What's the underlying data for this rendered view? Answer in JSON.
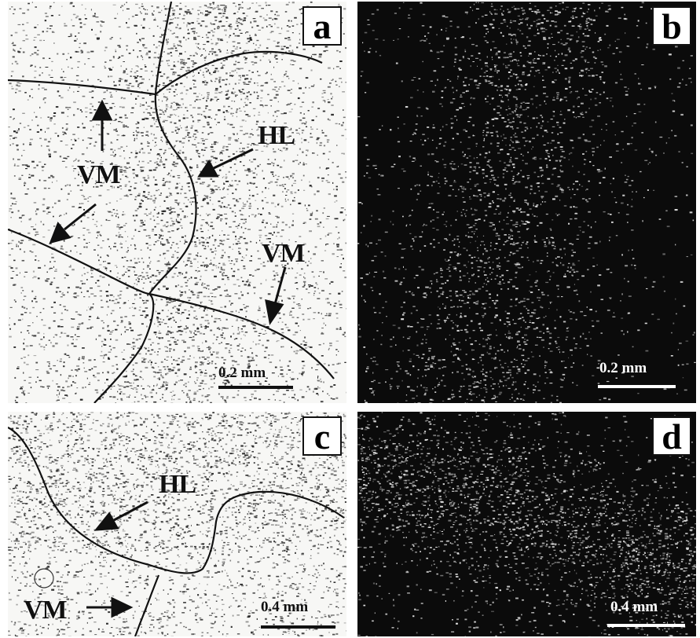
{
  "panels": {
    "a": {
      "letter": "a",
      "labels": {
        "vm_left": "VM",
        "hl": "HL",
        "vm_right": "VM"
      },
      "scale": "0.2 mm"
    },
    "b": {
      "letter": "b",
      "scale": "0.2 mm"
    },
    "c": {
      "letter": "c",
      "labels": {
        "hl": "HL",
        "vm": "VM"
      },
      "scale": "0.4 mm"
    },
    "d": {
      "letter": "d",
      "scale": "0.4 mm"
    }
  },
  "colors": {
    "light_bg": "#f7f7f5",
    "dark_bg": "#0b0b0b",
    "ink": "#111111",
    "speckle_light": "#e8e8e8"
  }
}
